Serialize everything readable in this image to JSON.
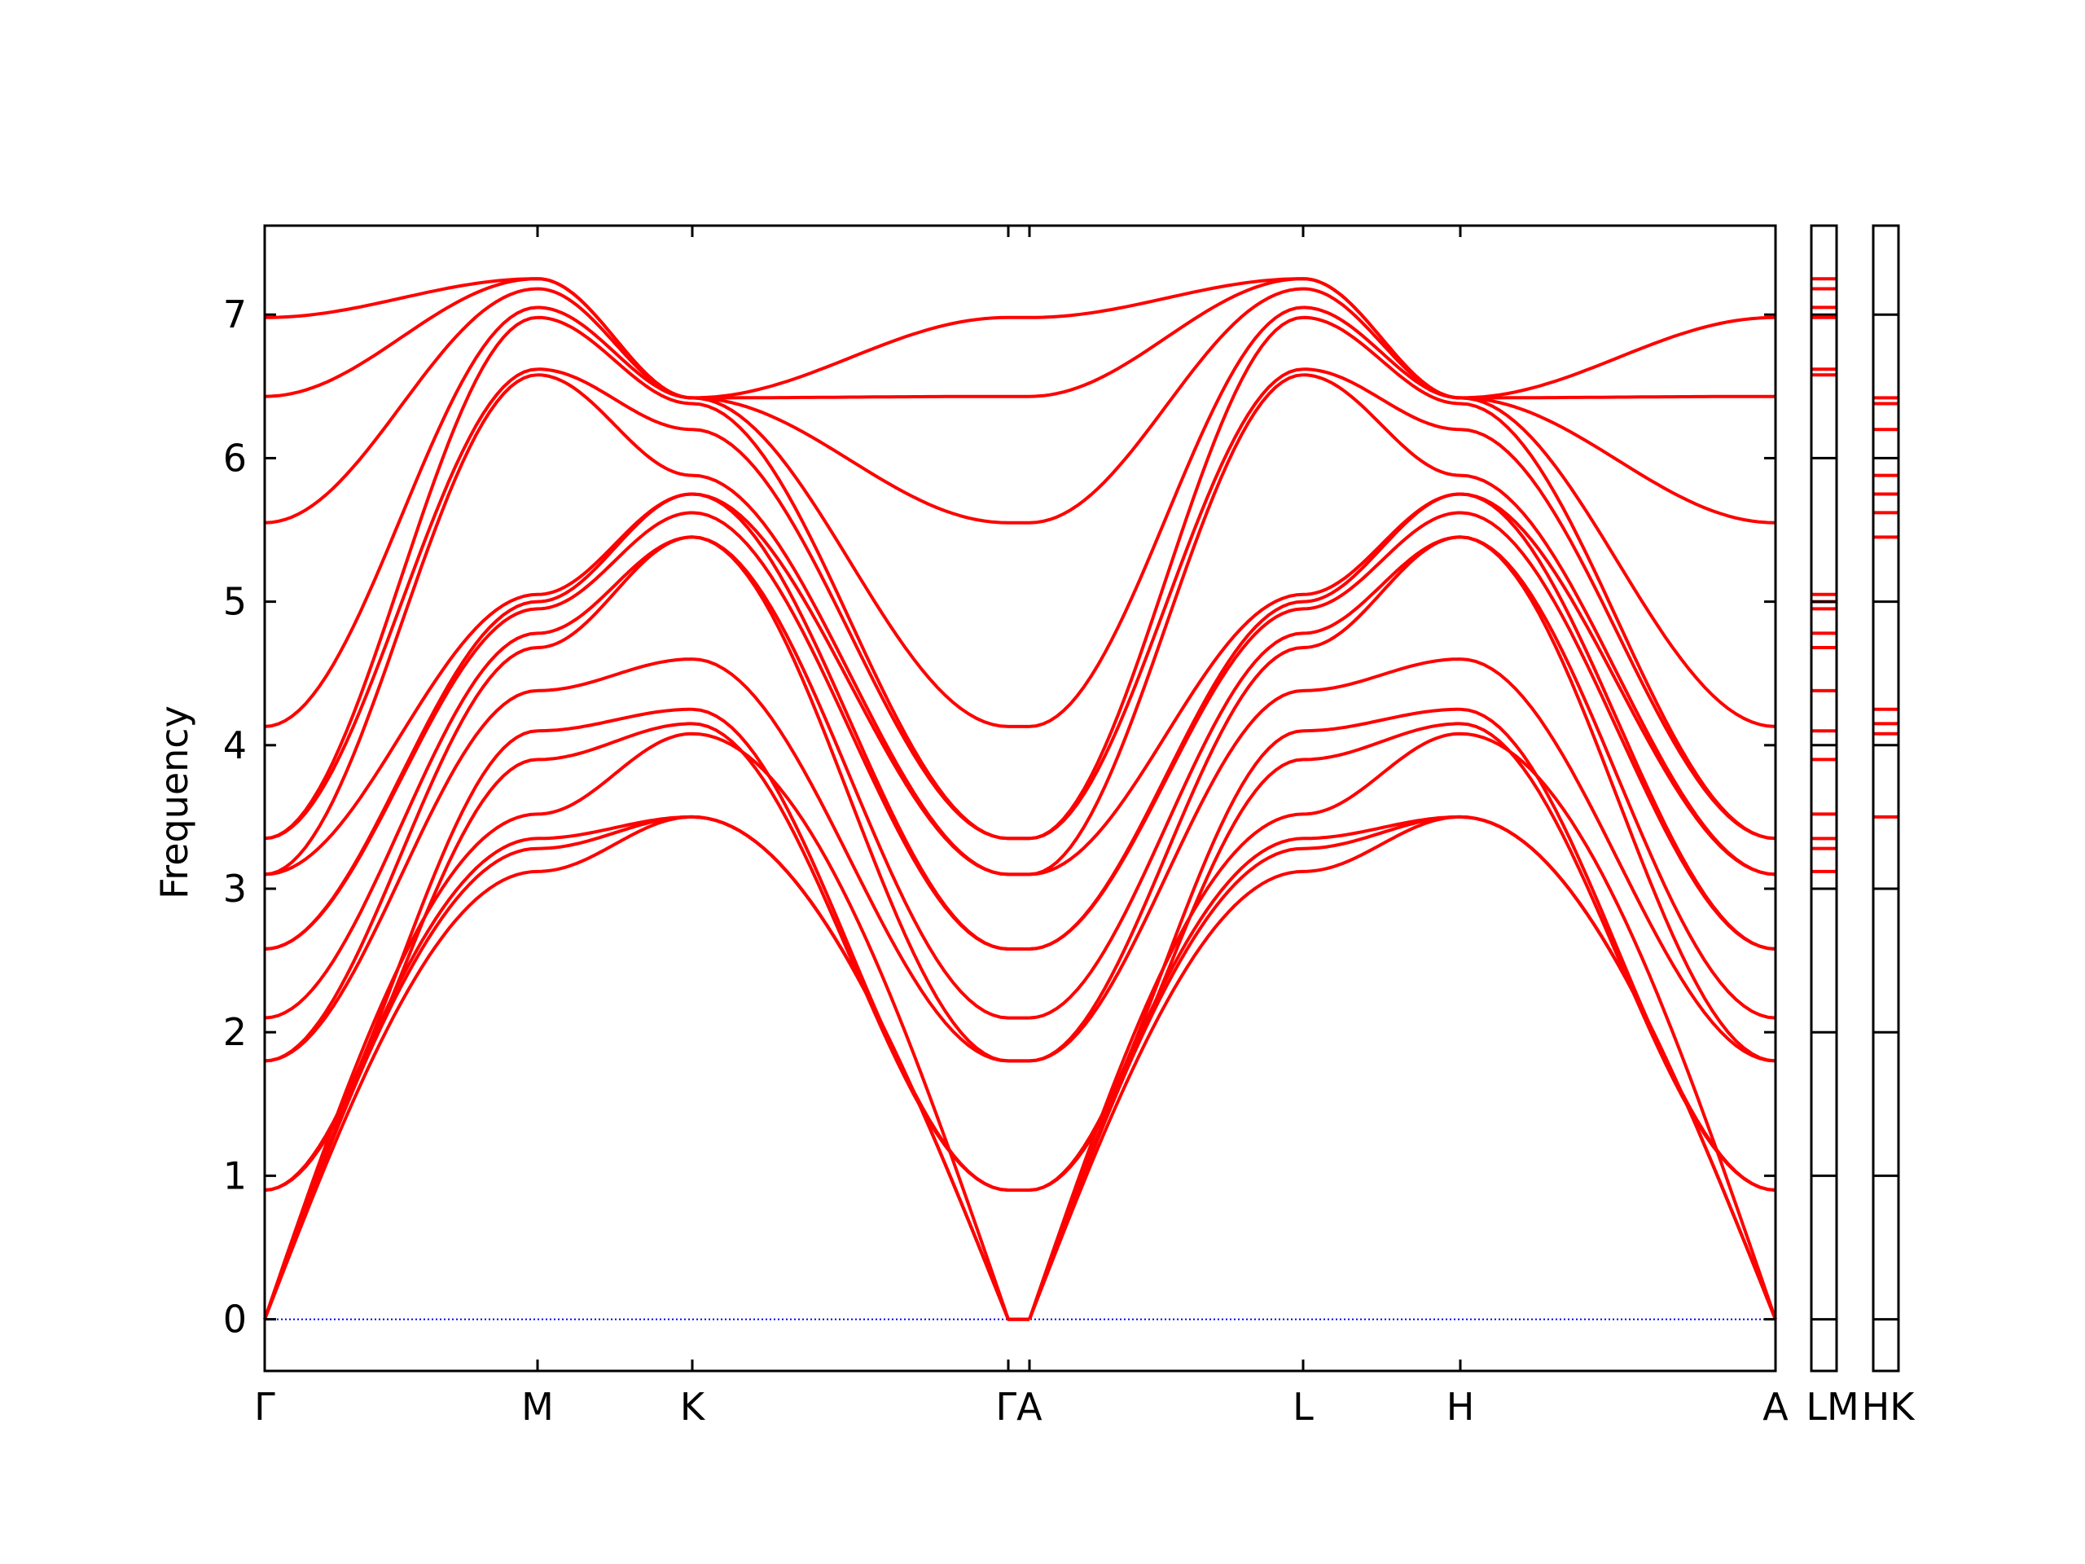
{
  "chart_data": {
    "type": "line",
    "title": "",
    "xlabel": "",
    "ylabel": "Frequency",
    "ylim": [
      -0.36,
      7.62
    ],
    "yticks": [
      0,
      1,
      2,
      3,
      4,
      5,
      6,
      7
    ],
    "ytick_labels": [
      "0",
      "1",
      "2",
      "3",
      "4",
      "5",
      "6",
      "7"
    ],
    "x_path_labels": [
      "Γ",
      "M",
      "K",
      "Γ",
      "A",
      "L",
      "H",
      "A"
    ],
    "x_label_texts": [
      "Γ",
      "M",
      "K",
      "ΓA",
      "L",
      "H",
      "A"
    ],
    "side_panel_labels": [
      "L",
      "M",
      "H",
      "K"
    ],
    "side_panel_label_texts": [
      "LM",
      "HK"
    ],
    "line_color": "#ff0000",
    "zero_line_color": "#0000ff",
    "band_paths": {
      "series": [
        {
          "values": [
            0,
            3.12,
            3.5,
            0,
            0,
            3.12,
            3.5,
            0
          ]
        },
        {
          "values": [
            0,
            3.28,
            3.5,
            0,
            0,
            3.28,
            3.5,
            0
          ]
        },
        {
          "values": [
            0,
            3.35,
            3.5,
            0,
            0,
            3.35,
            3.5,
            0
          ]
        },
        {
          "values": [
            0,
            3.52,
            4.08,
            0,
            0,
            3.52,
            4.08,
            0
          ]
        },
        {
          "values": [
            0.9,
            3.9,
            4.15,
            0.9,
            0.9,
            3.9,
            4.15,
            0.9
          ]
        },
        {
          "values": [
            0.9,
            4.1,
            4.25,
            0.9,
            0.9,
            4.1,
            4.25,
            0.9
          ]
        },
        {
          "values": [
            1.8,
            4.38,
            4.6,
            1.8,
            1.8,
            4.38,
            4.6,
            1.8
          ]
        },
        {
          "values": [
            1.8,
            4.68,
            5.45,
            1.8,
            1.8,
            4.68,
            5.45,
            1.8
          ]
        },
        {
          "values": [
            2.1,
            4.78,
            5.45,
            2.1,
            2.1,
            4.78,
            5.45,
            2.1
          ]
        },
        {
          "values": [
            2.58,
            4.95,
            5.62,
            2.58,
            2.58,
            4.95,
            5.62,
            2.58
          ]
        },
        {
          "values": [
            2.58,
            5.0,
            5.75,
            2.58,
            2.58,
            5.0,
            5.75,
            2.58
          ]
        },
        {
          "values": [
            3.1,
            5.05,
            5.75,
            3.1,
            3.1,
            5.05,
            5.75,
            3.1
          ]
        },
        {
          "values": [
            3.1,
            6.58,
            5.88,
            3.1,
            3.1,
            6.58,
            5.88,
            3.1
          ]
        },
        {
          "values": [
            3.35,
            6.62,
            6.2,
            3.35,
            3.35,
            6.62,
            6.2,
            3.35
          ]
        },
        {
          "values": [
            3.35,
            6.98,
            6.38,
            3.35,
            3.35,
            6.98,
            6.38,
            3.35
          ]
        },
        {
          "values": [
            4.13,
            7.05,
            6.42,
            4.13,
            4.13,
            7.05,
            6.42,
            4.13
          ]
        },
        {
          "values": [
            5.55,
            7.18,
            6.42,
            5.55,
            5.55,
            7.18,
            6.42,
            5.55
          ]
        },
        {
          "values": [
            6.43,
            7.25,
            6.42,
            6.43,
            6.43,
            7.25,
            6.42,
            6.43
          ]
        },
        {
          "values": [
            6.98,
            7.25,
            6.42,
            6.98,
            6.98,
            7.25,
            6.42,
            6.98
          ]
        }
      ]
    },
    "panel_LM_levels": [
      3.12,
      3.28,
      3.35,
      3.52,
      3.9,
      4.1,
      4.38,
      4.68,
      4.78,
      4.95,
      5.0,
      5.05,
      6.58,
      6.62,
      6.98,
      7.05,
      7.18,
      7.25
    ],
    "panel_HK_levels": [
      3.5,
      4.08,
      4.15,
      4.25,
      5.45,
      5.62,
      5.75,
      5.88,
      6.2,
      6.38,
      6.42
    ]
  }
}
